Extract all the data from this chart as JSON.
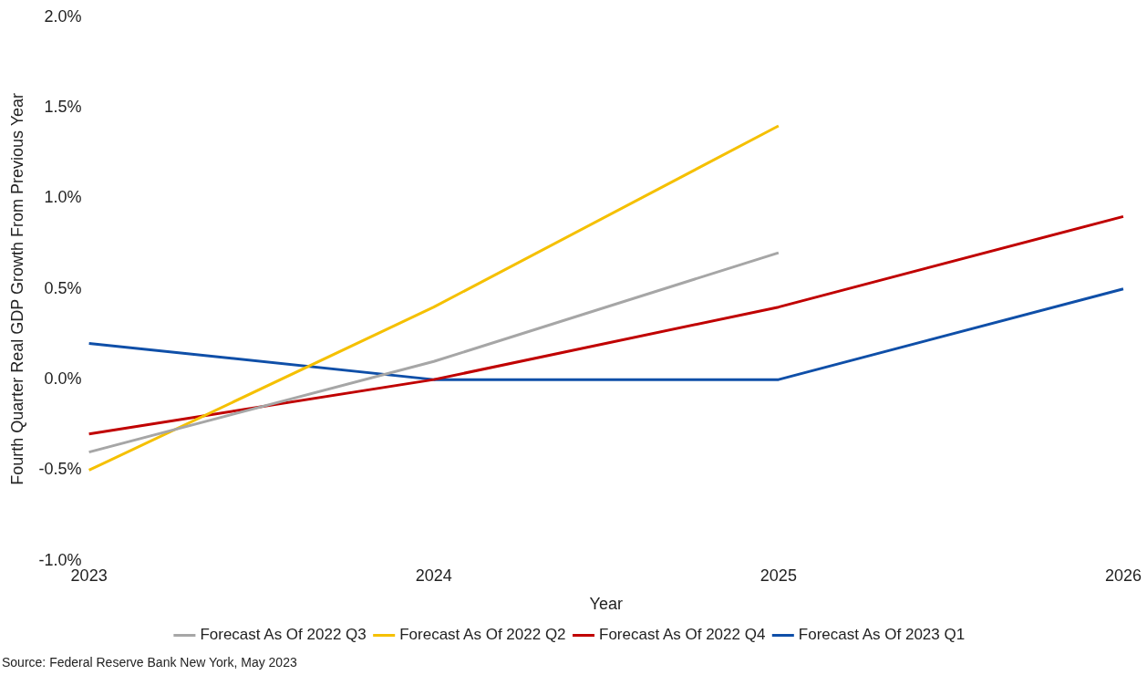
{
  "chart_data": {
    "type": "line",
    "xlabel": "Year",
    "ylabel": "Fourth Quarter Real GDP Growth From Previous Year",
    "categories": [
      "2023",
      "2024",
      "2025",
      "2026"
    ],
    "series": [
      {
        "name": "Forecast As Of 2022 Q3",
        "color": "#a6a6a6",
        "values": [
          -0.4,
          0.1,
          0.7,
          null
        ]
      },
      {
        "name": "Forecast As Of 2022 Q2",
        "color": "#f5c000",
        "values": [
          -0.5,
          0.4,
          1.4,
          null
        ]
      },
      {
        "name": "Forecast As Of 2022 Q4",
        "color": "#c00000",
        "values": [
          -0.3,
          0.0,
          0.4,
          0.9
        ]
      },
      {
        "name": "Forecast As Of 2023 Q1",
        "color": "#0f4fa8",
        "values": [
          0.2,
          0.0,
          0.0,
          0.5
        ]
      }
    ],
    "ylim": [
      -1,
      2
    ],
    "yticks": [
      {
        "value": -1,
        "label": "-1.0%"
      },
      {
        "value": -0.5,
        "label": "-0.5%"
      },
      {
        "value": 0,
        "label": "0.0%"
      },
      {
        "value": 0.5,
        "label": "0.5%"
      },
      {
        "value": 1,
        "label": "1.0%"
      },
      {
        "value": 1.5,
        "label": "1.5%"
      },
      {
        "value": 2,
        "label": "2.0%"
      }
    ],
    "grid": false,
    "legend": "bottom",
    "marker": "none",
    "line_style": "solid",
    "annotations": [
      "Source: Federal Reserve Bank New York, May 2023"
    ]
  }
}
